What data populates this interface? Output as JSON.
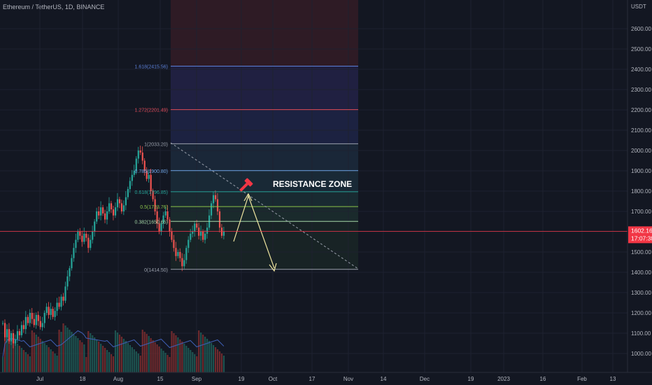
{
  "header": {
    "symbol_title": "Ethereum / TetherUS, 1D, BINANCE"
  },
  "price_axis": {
    "unit": "USDT",
    "ticks": [
      "2600.00",
      "2500.00",
      "2400.00",
      "2300.00",
      "2200.00",
      "2100.00",
      "2000.00",
      "1900.00",
      "1800.00",
      "1700.00",
      "1600.00",
      "1500.00",
      "1400.00",
      "1300.00",
      "1200.00",
      "1100.00",
      "1000.00"
    ],
    "ticks_values": [
      2600,
      2500,
      2400,
      2300,
      2200,
      2100,
      2000,
      1900,
      1800,
      1700,
      1600,
      1500,
      1400,
      1300,
      1200,
      1100,
      1000
    ],
    "current_price": "1602.16",
    "countdown": "17:07:38"
  },
  "time_axis": {
    "labels": [
      "Jul",
      "18",
      "Aug",
      "15",
      "Sep",
      "19",
      "Oct",
      "17",
      "Nov",
      "14",
      "Dec",
      "19",
      "2023",
      "16",
      "Feb",
      "13"
    ]
  },
  "fib_levels": [
    {
      "label": "1.618(2415.56)",
      "value": 2415.56,
      "color": "#5b7fd6"
    },
    {
      "label": "1.272(2201.49)",
      "value": 2201.49,
      "color": "#e04b5a"
    },
    {
      "label": "1(2033.20)",
      "value": 2033.2,
      "color": "#9aa0ac"
    },
    {
      "label": "0.786(1900.80)",
      "value": 1900.8,
      "color": "#6ea5e6"
    },
    {
      "label": "0.618(1796.85)",
      "value": 1796.85,
      "color": "#26a69a"
    },
    {
      "label": "0.5(1723.76)",
      "value": 1723.76,
      "color": "#8bc34a"
    },
    {
      "label": "0.382(1650.65)",
      "value": 1650.65,
      "color": "#a5d6a7"
    },
    {
      "label": "0(1414.50)",
      "value": 1414.5,
      "color": "#9aa0ac"
    }
  ],
  "annotations": {
    "resistance": "RESISTANCE ZONE"
  },
  "icons": {
    "resistance_marker": "hammer-icon"
  },
  "colors": {
    "up": "#26a69a",
    "down": "#ef5350",
    "price_line": "#f23645"
  }
}
